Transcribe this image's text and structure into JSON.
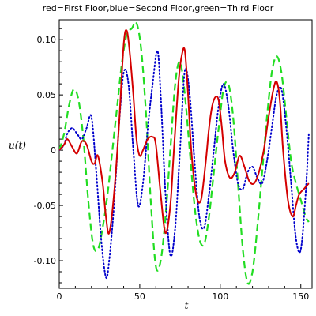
{
  "chart_data": {
    "type": "line",
    "title": "red=First Floor,blue=Second Floor,green=Third Floor",
    "xlabel": "t",
    "ylabel": "u(t)",
    "xlim": [
      0,
      157
    ],
    "ylim": [
      -0.125,
      0.118
    ],
    "xticks": [
      0,
      50,
      100,
      150
    ],
    "yticks": [
      0.1,
      0.05,
      0,
      -0.05,
      -0.1
    ],
    "xtick_labels": [
      "0",
      "50",
      "100",
      "150"
    ],
    "ytick_labels": [
      "0.10",
      "0.05",
      "0",
      "-0.05",
      "-0.10"
    ],
    "grid": false,
    "legend": "none",
    "series": [
      {
        "color": "#d40000",
        "style": "solid",
        "x": [
          0,
          3,
          5,
          8,
          11,
          14,
          17,
          20,
          22,
          24,
          27,
          29,
          31,
          34,
          37,
          40,
          42,
          44,
          46,
          48,
          50,
          52,
          55,
          58,
          60,
          63,
          66,
          69,
          71,
          74,
          76,
          78,
          80,
          82,
          85,
          88,
          91,
          93,
          95,
          97,
          99,
          101,
          103,
          106,
          109,
          112,
          115,
          118,
          121,
          124,
          127,
          130,
          133,
          135,
          137,
          139,
          142,
          145,
          147,
          149,
          152,
          155
        ],
        "y": [
          0,
          0.005,
          0.01,
          0.003,
          -0.003,
          0.008,
          0.005,
          -0.01,
          -0.012,
          -0.005,
          -0.03,
          -0.06,
          -0.075,
          -0.04,
          0.02,
          0.095,
          0.108,
          0.085,
          0.05,
          0.01,
          -0.005,
          0.0,
          0.01,
          0.012,
          0.005,
          -0.04,
          -0.075,
          -0.05,
          -0.005,
          0.06,
          0.085,
          0.09,
          0.05,
          0.0,
          -0.04,
          -0.045,
          -0.01,
          0.02,
          0.04,
          0.048,
          0.045,
          0.02,
          -0.01,
          -0.025,
          -0.02,
          -0.005,
          -0.015,
          -0.028,
          -0.03,
          -0.02,
          0.0,
          0.03,
          0.055,
          0.062,
          0.045,
          0.0,
          -0.045,
          -0.06,
          -0.05,
          -0.04,
          -0.035,
          -0.03
        ]
      },
      {
        "color": "#0000cc",
        "style": "dotted",
        "x": [
          0,
          3,
          5,
          8,
          11,
          14,
          17,
          20,
          23,
          26,
          29,
          31,
          34,
          37,
          40,
          43,
          46,
          49,
          52,
          55,
          58,
          61,
          63,
          66,
          69,
          72,
          75,
          78,
          81,
          84,
          87,
          90,
          93,
          96,
          99,
          102,
          105,
          108,
          111,
          114,
          117,
          120,
          123,
          126,
          129,
          132,
          135,
          138,
          141,
          144,
          147,
          150,
          153,
          155
        ],
        "y": [
          0,
          0.005,
          0.015,
          0.02,
          0.015,
          0.01,
          0.02,
          0.03,
          -0.02,
          -0.08,
          -0.115,
          -0.1,
          -0.05,
          0.02,
          0.07,
          0.06,
          0.0,
          -0.05,
          -0.03,
          0.02,
          0.06,
          0.09,
          0.05,
          -0.04,
          -0.095,
          -0.07,
          0.0,
          0.072,
          0.05,
          -0.01,
          -0.06,
          -0.07,
          -0.04,
          0.0,
          0.04,
          0.06,
          0.04,
          0.0,
          -0.03,
          -0.035,
          -0.02,
          -0.015,
          -0.025,
          -0.03,
          -0.01,
          0.02,
          0.05,
          0.055,
          0.02,
          -0.03,
          -0.08,
          -0.09,
          -0.04,
          0.015
        ]
      },
      {
        "color": "#22dd22",
        "style": "dashed",
        "x": [
          0,
          3,
          6,
          9,
          12,
          15,
          18,
          21,
          24,
          27,
          30,
          33,
          36,
          39,
          42,
          45,
          48,
          51,
          54,
          57,
          60,
          63,
          66,
          69,
          72,
          75,
          78,
          81,
          84,
          87,
          90,
          93,
          96,
          99,
          102,
          105,
          108,
          111,
          114,
          117,
          120,
          123,
          126,
          129,
          132,
          135,
          138,
          141,
          144,
          147,
          150,
          153,
          155
        ],
        "y": [
          0,
          0.015,
          0.04,
          0.055,
          0.045,
          0.01,
          -0.045,
          -0.085,
          -0.09,
          -0.07,
          -0.04,
          0.0,
          0.04,
          0.08,
          0.105,
          0.11,
          0.115,
          0.09,
          0.03,
          -0.05,
          -0.105,
          -0.1,
          -0.06,
          0.0,
          0.06,
          0.08,
          0.05,
          0.0,
          -0.05,
          -0.08,
          -0.085,
          -0.06,
          -0.02,
          0.02,
          0.055,
          0.06,
          0.03,
          -0.03,
          -0.09,
          -0.12,
          -0.11,
          -0.07,
          -0.02,
          0.03,
          0.07,
          0.085,
          0.07,
          0.03,
          -0.01,
          -0.03,
          -0.045,
          -0.06,
          -0.065
        ]
      }
    ]
  }
}
